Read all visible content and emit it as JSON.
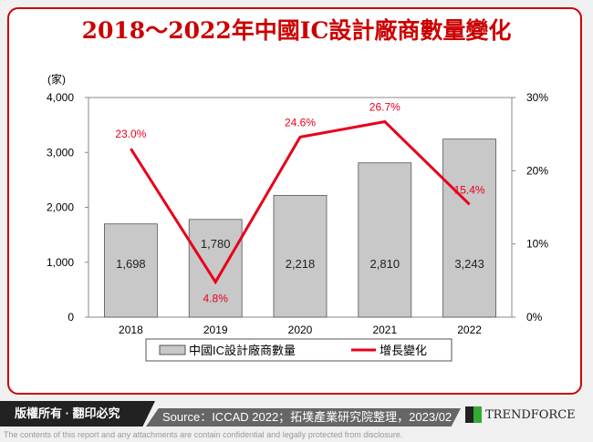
{
  "title": "2018～2022年中國IC設計廠商數量變化",
  "chart_data": {
    "type": "bar+line",
    "title": "2018～2022年中國IC設計廠商數量變化",
    "categories": [
      "2018",
      "2019",
      "2020",
      "2021",
      "2022"
    ],
    "ylabel": "(家)",
    "ylim": [
      0,
      4000
    ],
    "yticks": [
      "0",
      "1,000",
      "2,000",
      "3,000",
      "4,000"
    ],
    "y2lim": [
      0,
      30
    ],
    "y2ticks": [
      "0%",
      "10%",
      "20%",
      "30%"
    ],
    "series": [
      {
        "name": "中國IC設計廠商數量",
        "type": "bar",
        "values": [
          1698,
          1780,
          2218,
          2810,
          3243
        ],
        "labels": [
          "1,698",
          "1,780",
          "2,218",
          "2,810",
          "3,243"
        ],
        "color": "#c8c8c8"
      },
      {
        "name": "增長變化",
        "type": "line",
        "axis": "right",
        "values": [
          23.0,
          4.8,
          24.6,
          26.7,
          15.4
        ],
        "labels": [
          "23.0%",
          "4.8%",
          "24.6%",
          "26.7%",
          "15.4%"
        ],
        "color": "#e8001c"
      }
    ],
    "legend": "bottom",
    "grid": false
  },
  "footer": {
    "rights": "版權所有 · 翻印必究",
    "source": "Source：ICCAD 2022；拓墣產業研究院整理，2023/02",
    "brand": "TRENDFORCE",
    "disclaimer": "The contents of this report and any attachments are contain confidential and legally protected from disclosure."
  }
}
